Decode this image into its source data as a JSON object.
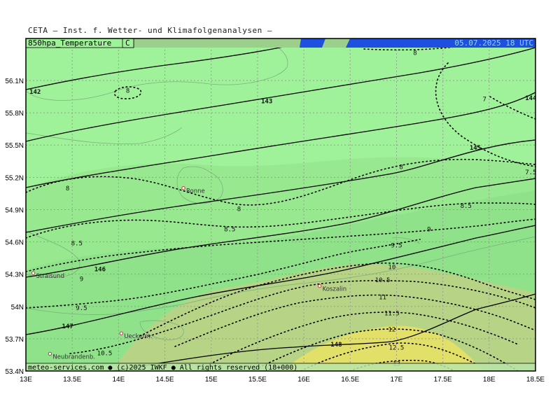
{
  "header": {
    "title": "CETA — Inst. f. Wetter- und Klimafolgenanalysen —",
    "parameter": "850hpa_Temperature",
    "unit": "C",
    "valid_time": "05.07.2025 18 UTC"
  },
  "footer": {
    "copyright": "meteo-services.com ● (c)2025 IWKF ● All rights reserved (18+000)"
  },
  "axes": {
    "lon_labels": [
      "13E",
      "13.5E",
      "14E",
      "14.5E",
      "15E",
      "15.5E",
      "16E",
      "16.5E",
      "17E",
      "17.5E",
      "18E",
      "18.5E"
    ],
    "lat_labels": [
      "56.1N",
      "55.8N",
      "55.5N",
      "55.2N",
      "54.9N",
      "54.6N",
      "54.3N",
      "54N",
      "53.7N",
      "53.4N"
    ]
  },
  "cities": [
    {
      "name": "Ronne",
      "lon": 14.7,
      "lat": 55.1
    },
    {
      "name": "Stralsund",
      "lon": 13.08,
      "lat": 54.31
    },
    {
      "name": "Koszalin",
      "lon": 16.17,
      "lat": 54.19
    },
    {
      "name": "Ueckerm.",
      "lon": 14.03,
      "lat": 53.75
    },
    {
      "name": "Neubrandenb.",
      "lon": 13.26,
      "lat": 53.56
    }
  ],
  "height_contours": [
    {
      "value": "142",
      "label_lon": 13.1,
      "label_lat": 56.0
    },
    {
      "value": "143",
      "label_lon": 15.6,
      "label_lat": 55.91
    },
    {
      "value": "144",
      "label_lon": 18.45,
      "label_lat": 55.94
    },
    {
      "value": "145",
      "label_lon": 17.85,
      "label_lat": 55.48
    },
    {
      "value": "146",
      "label_lon": 13.8,
      "label_lat": 54.35
    },
    {
      "value": "147",
      "label_lon": 13.45,
      "label_lat": 53.82
    },
    {
      "value": "148",
      "label_lon": 16.35,
      "label_lat": 53.65
    }
  ],
  "temperature_labels": [
    {
      "value": "8",
      "lon": 17.2,
      "lat": 56.36
    },
    {
      "value": "8",
      "lon": 14.1,
      "lat": 56.01
    },
    {
      "value": "7",
      "lon": 17.95,
      "lat": 55.93
    },
    {
      "value": "8",
      "lon": 13.45,
      "lat": 55.1
    },
    {
      "value": "8",
      "lon": 15.3,
      "lat": 54.91
    },
    {
      "value": "8",
      "lon": 17.05,
      "lat": 55.3
    },
    {
      "value": "7.5",
      "lon": 18.45,
      "lat": 55.25
    },
    {
      "value": "8.5",
      "lon": 15.2,
      "lat": 54.72
    },
    {
      "value": "8.5",
      "lon": 17.75,
      "lat": 54.94
    },
    {
      "value": "8.5",
      "lon": 13.55,
      "lat": 54.59
    },
    {
      "value": "9",
      "lon": 17.35,
      "lat": 54.72
    },
    {
      "value": "9",
      "lon": 13.6,
      "lat": 54.26
    },
    {
      "value": "9.5",
      "lon": 17.0,
      "lat": 54.57
    },
    {
      "value": "9.5",
      "lon": 13.6,
      "lat": 53.99
    },
    {
      "value": "10",
      "lon": 16.95,
      "lat": 54.37
    },
    {
      "value": "10.5",
      "lon": 16.85,
      "lat": 54.25
    },
    {
      "value": "10.5",
      "lon": 13.85,
      "lat": 53.57
    },
    {
      "value": "11",
      "lon": 16.85,
      "lat": 54.09
    },
    {
      "value": "11.5",
      "lon": 16.95,
      "lat": 53.94
    },
    {
      "value": "12",
      "lon": 16.95,
      "lat": 53.79
    },
    {
      "value": "12.5",
      "lon": 17.0,
      "lat": 53.62
    },
    {
      "value": "13",
      "lon": 17.0,
      "lat": 53.47
    }
  ],
  "colors": {
    "band_7_8": "#a0f29a",
    "band_8_9": "#98e890",
    "band_9_10": "#8fe28a",
    "band_10_12": "#b7d486",
    "band_12_14": "#e2e068",
    "header_blue": "#1f4fe0",
    "header_bar": "#9ccf8c",
    "frame": "#000000"
  }
}
